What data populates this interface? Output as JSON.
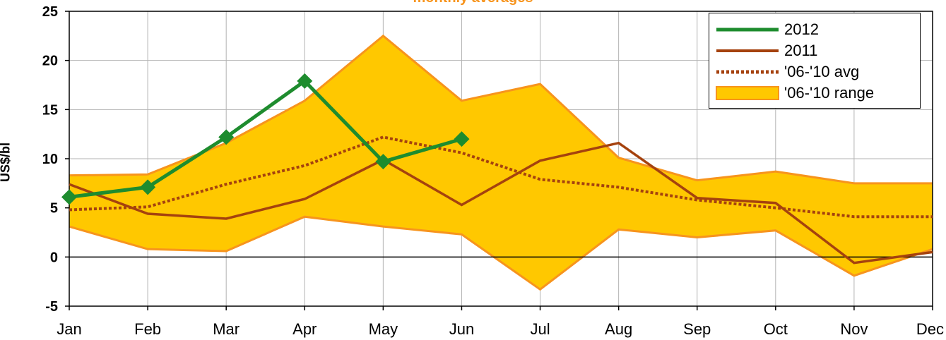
{
  "chart_data": {
    "type": "area",
    "title": "monthly averages",
    "ylabel": "US$/bl",
    "xlabel": "",
    "categories": [
      "Jan",
      "Feb",
      "Mar",
      "Apr",
      "May",
      "Jun",
      "Jul",
      "Aug",
      "Sep",
      "Oct",
      "Nov",
      "Dec"
    ],
    "ylim": [
      -5,
      25
    ],
    "yticks": [
      "25",
      "20",
      "15",
      "10",
      "5",
      "0",
      "-5"
    ],
    "grid": true,
    "legend_position": "top-right",
    "series": [
      {
        "name": "2012",
        "style": "line-markers",
        "color": "#1e8c2e",
        "values": [
          6.1,
          7.1,
          12.2,
          17.9,
          9.7,
          12.0,
          null,
          null,
          null,
          null,
          null,
          null
        ]
      },
      {
        "name": "2011",
        "style": "line",
        "color": "#a5420e",
        "values": [
          7.4,
          4.4,
          3.9,
          5.9,
          9.9,
          5.3,
          9.8,
          11.6,
          6.0,
          5.5,
          -0.6,
          0.5
        ]
      },
      {
        "name": "'06-'10 avg",
        "style": "dotted",
        "color": "#a5420e",
        "values": [
          4.8,
          5.1,
          7.4,
          9.3,
          12.2,
          10.6,
          7.9,
          7.1,
          5.8,
          5.0,
          4.1,
          4.1
        ]
      },
      {
        "name": "'06-'10 range",
        "style": "band",
        "color": "#ffc800",
        "edge_color": "#f7941d",
        "low": [
          3.1,
          0.8,
          0.6,
          4.1,
          3.1,
          2.3,
          -3.3,
          2.8,
          2.0,
          2.7,
          -1.9,
          0.8
        ],
        "high": [
          8.3,
          8.4,
          11.6,
          15.9,
          22.5,
          15.9,
          17.6,
          10.1,
          7.8,
          8.7,
          7.5,
          7.5
        ]
      }
    ]
  }
}
